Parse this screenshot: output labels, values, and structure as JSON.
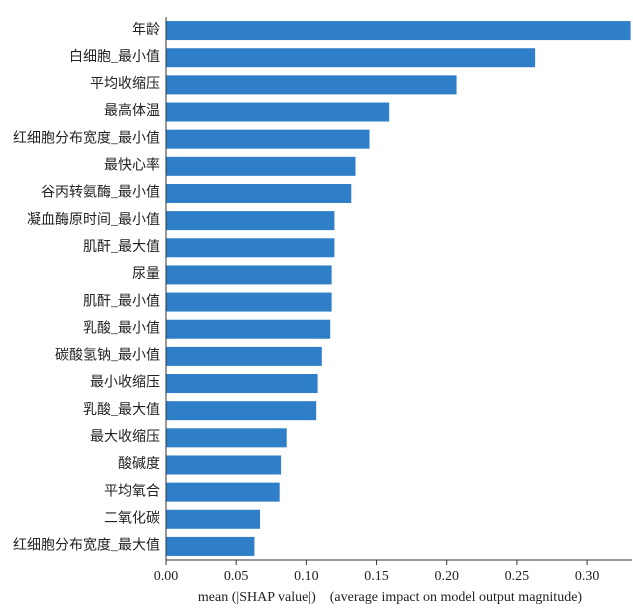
{
  "chart_data": {
    "type": "barh",
    "x_label": "mean (|SHAP value|)    (average impact on model output magnitude)",
    "categories": [
      "年龄",
      "白细胞_最小值",
      "平均收缩压",
      "最高体温",
      "红细胞分布宽度_最小值",
      "最快心率",
      "谷丙转氨酶_最小值",
      "凝血酶原时间_最小值",
      "肌酐_最大值",
      "尿量",
      "肌酐_最小值",
      "乳酸_最小值",
      "碳酸氢钠_最小值",
      "最小收缩压",
      "乳酸_最大值",
      "最大收缩压",
      "酸碱度",
      "平均氧合",
      "二氧化碳",
      "红细胞分布宽度_最大值"
    ],
    "values": [
      0.331,
      0.263,
      0.207,
      0.159,
      0.145,
      0.135,
      0.132,
      0.12,
      0.12,
      0.118,
      0.118,
      0.117,
      0.111,
      0.108,
      0.107,
      0.086,
      0.082,
      0.081,
      0.067,
      0.063
    ],
    "color": "#2e7fc8",
    "xlim": [
      0,
      0.332
    ],
    "xticks": [
      {
        "value": 0,
        "label": "0.00"
      },
      {
        "value": 0.05,
        "label": "0.05"
      },
      {
        "value": 0.1,
        "label": "0.10"
      },
      {
        "value": 0.15,
        "label": "0.15"
      },
      {
        "value": 0.2,
        "label": "0.20"
      },
      {
        "value": 0.25,
        "label": "0.25"
      },
      {
        "value": 0.3,
        "label": "0.30"
      }
    ]
  }
}
